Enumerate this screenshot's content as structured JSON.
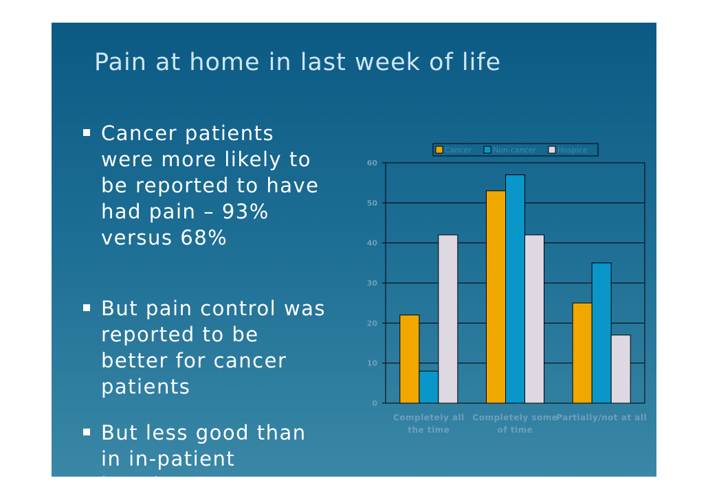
{
  "slide": {
    "title": "Pain at home in last week of life",
    "bullets": [
      "Cancer patients were more likely to be reported to have had pain – 93% versus 68%",
      "But pain control was reported to be better for cancer patients",
      "But less good than in in-patient hospices …"
    ]
  },
  "chart_data": {
    "type": "bar",
    "categories": [
      "Completely all the time",
      "Completely some of time",
      "Partially/not at all"
    ],
    "category_lines": [
      [
        "Completely all",
        "the time"
      ],
      [
        "Completely some",
        "of time"
      ],
      [
        "Partially/not at all"
      ]
    ],
    "series": [
      {
        "name": "Cancer",
        "values": [
          22,
          53,
          25
        ],
        "color": "#f0a800"
      },
      {
        "name": "Non-cancer",
        "values": [
          8,
          57,
          35
        ],
        "color": "#0a96c8"
      },
      {
        "name": "Hospice",
        "values": [
          42,
          42,
          17
        ],
        "color": "#ddd8e2"
      }
    ],
    "ylim": [
      0,
      60
    ],
    "yticks": [
      0,
      10,
      20,
      30,
      40,
      50,
      60
    ],
    "legend": "top",
    "grid": true,
    "title": "",
    "xlabel": "",
    "ylabel": ""
  }
}
